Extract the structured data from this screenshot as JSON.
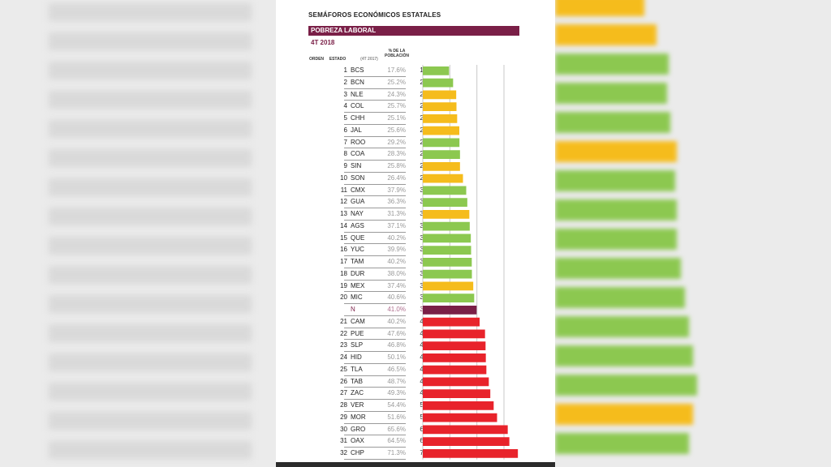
{
  "header": {
    "title": "SEMÁFOROS ECONÓMICOS ESTATALES",
    "banner": "POBREZA LABORAL",
    "period": "4T 2018"
  },
  "columns": {
    "order": "ORDEN",
    "state": "ESTADO",
    "prev": "(4T 2017)",
    "curr_line1": "% DE LA",
    "curr_line2": "POBLACIÓN"
  },
  "colors": {
    "green": "#8cc850",
    "yellow": "#f5bc1c",
    "red": "#e8232b",
    "national": "#7a1f47"
  },
  "chart_data": {
    "type": "bar",
    "orientation": "horizontal",
    "rows": [
      {
        "rank": "1",
        "state": "BCS",
        "prev": "17.6%",
        "value": 19.4,
        "label": "19.4%",
        "color": "green"
      },
      {
        "rank": "2",
        "state": "BCN",
        "prev": "25.2%",
        "value": 22.4,
        "label": "22.4%",
        "color": "green"
      },
      {
        "rank": "3",
        "state": "NLE",
        "prev": "24.3%",
        "value": 24.7,
        "label": "24.7%",
        "color": "yellow"
      },
      {
        "rank": "4",
        "state": "COL",
        "prev": "25.7%",
        "value": 24.9,
        "label": "24.9%",
        "color": "yellow"
      },
      {
        "rank": "5",
        "state": "CHH",
        "prev": "25.1%",
        "value": 25.4,
        "label": "25.4%",
        "color": "yellow"
      },
      {
        "rank": "6",
        "state": "JAL",
        "prev": "25.6%",
        "value": 27.0,
        "label": "27.0%",
        "color": "yellow"
      },
      {
        "rank": "7",
        "state": "ROO",
        "prev": "29.2%",
        "value": 27.1,
        "label": "27.1%",
        "color": "green"
      },
      {
        "rank": "8",
        "state": "COA",
        "prev": "28.3%",
        "value": 27.5,
        "label": "27.5%",
        "color": "green"
      },
      {
        "rank": "9",
        "state": "SIN",
        "prev": "25.8%",
        "value": 27.5,
        "label": "27.5%",
        "color": "yellow"
      },
      {
        "rank": "10",
        "state": "SON",
        "prev": "26.4%",
        "value": 29.7,
        "label": "29.7%",
        "color": "yellow"
      },
      {
        "rank": "11",
        "state": "CMX",
        "prev": "37.9%",
        "value": 32.1,
        "label": "32.1%",
        "color": "green"
      },
      {
        "rank": "12",
        "state": "GUA",
        "prev": "36.3%",
        "value": 32.9,
        "label": "32.9%",
        "color": "green"
      },
      {
        "rank": "13",
        "state": "NAY",
        "prev": "31.3%",
        "value": 34.4,
        "label": "34.4%",
        "color": "yellow"
      },
      {
        "rank": "14",
        "state": "AGS",
        "prev": "37.1%",
        "value": 34.7,
        "label": "34.7%",
        "color": "green"
      },
      {
        "rank": "15",
        "state": "QUE",
        "prev": "40.2%",
        "value": 35.5,
        "label": "35.5%",
        "color": "green"
      },
      {
        "rank": "16",
        "state": "YUC",
        "prev": "39.9%",
        "value": 35.7,
        "label": "35.7%",
        "color": "green"
      },
      {
        "rank": "17",
        "state": "TAM",
        "prev": "40.2%",
        "value": 36.2,
        "label": "36.2%",
        "color": "green"
      },
      {
        "rank": "18",
        "state": "DUR",
        "prev": "38.0%",
        "value": 36.3,
        "label": "36.3%",
        "color": "green"
      },
      {
        "rank": "19",
        "state": "MEX",
        "prev": "37.4%",
        "value": 37.3,
        "label": "37.3%",
        "color": "yellow"
      },
      {
        "rank": "20",
        "state": "MIC",
        "prev": "40.6%",
        "value": 38.0,
        "label": "38.0%",
        "color": "green"
      },
      {
        "rank": "",
        "state": "N",
        "prev": "41.0%",
        "value": 39.8,
        "label": "39.8%",
        "color": "national"
      },
      {
        "rank": "21",
        "state": "CAM",
        "prev": "40.2%",
        "value": 42.0,
        "label": "42.0%",
        "color": "red"
      },
      {
        "rank": "22",
        "state": "PUE",
        "prev": "47.6%",
        "value": 46.0,
        "label": "46.0%",
        "color": "red"
      },
      {
        "rank": "23",
        "state": "SLP",
        "prev": "46.8%",
        "value": 46.4,
        "label": "46.4%",
        "color": "red"
      },
      {
        "rank": "24",
        "state": "HID",
        "prev": "50.1%",
        "value": 46.6,
        "label": "46.6%",
        "color": "red"
      },
      {
        "rank": "25",
        "state": "TLA",
        "prev": "46.5%",
        "value": 47.0,
        "label": "47.0%",
        "color": "red"
      },
      {
        "rank": "26",
        "state": "TAB",
        "prev": "48.7%",
        "value": 48.8,
        "label": "48.8%",
        "color": "red"
      },
      {
        "rank": "27",
        "state": "ZAC",
        "prev": "49.3%",
        "value": 49.9,
        "label": "49.9%",
        "color": "red"
      },
      {
        "rank": "28",
        "state": "VER",
        "prev": "54.4%",
        "value": 52.4,
        "label": "52.4%",
        "color": "red"
      },
      {
        "rank": "29",
        "state": "MOR",
        "prev": "51.6%",
        "value": 54.9,
        "label": "54.9%",
        "color": "red"
      },
      {
        "rank": "30",
        "state": "GRO",
        "prev": "65.6%",
        "value": 62.8,
        "label": "62.8%",
        "color": "red"
      },
      {
        "rank": "31",
        "state": "OAX",
        "prev": "64.5%",
        "value": 64.0,
        "label": "64.0%",
        "color": "red"
      },
      {
        "rank": "32",
        "state": "CHP",
        "prev": "71.3%",
        "value": 70.3,
        "label": "70.3%",
        "color": "red"
      }
    ],
    "xlim": [
      0,
      72
    ],
    "grid": true
  }
}
